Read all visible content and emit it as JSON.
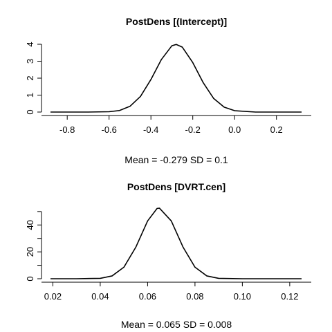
{
  "chart_data": [
    {
      "type": "line",
      "title": "PostDens [(Intercept)]",
      "xlabel": "Mean = -0.279 SD = 0.1",
      "ylabel": "",
      "xlim": [
        -0.88,
        0.32
      ],
      "ylim": [
        0,
        4
      ],
      "x_ticks": [
        -0.8,
        -0.6,
        -0.4,
        -0.2,
        0.0,
        0.2
      ],
      "x_tick_labels": [
        "-0.8",
        "-0.6",
        "-0.4",
        "-0.2",
        "0.0",
        "0.2"
      ],
      "y_ticks": [
        0,
        1,
        2,
        3,
        4
      ],
      "y_tick_labels": [
        "0",
        "1",
        "2",
        "3",
        "4"
      ],
      "series": [
        {
          "x": [
            -0.88,
            -0.8,
            -0.7,
            -0.6,
            -0.55,
            -0.5,
            -0.45,
            -0.4,
            -0.35,
            -0.3,
            -0.279,
            -0.25,
            -0.2,
            -0.15,
            -0.1,
            -0.05,
            0.0,
            0.1,
            0.2,
            0.32
          ],
          "y": [
            0.0,
            0.0,
            0.0,
            0.02,
            0.09,
            0.34,
            0.92,
            1.92,
            3.1,
            3.91,
            3.99,
            3.83,
            2.92,
            1.73,
            0.8,
            0.29,
            0.08,
            0.0,
            0.0,
            0.0
          ]
        }
      ]
    },
    {
      "type": "line",
      "title": "PostDens [DVRT.cen]",
      "xlabel": "Mean = 0.065 SD = 0.008",
      "ylabel": "",
      "xlim": [
        0.019,
        0.125
      ],
      "ylim": [
        0,
        53
      ],
      "x_ticks": [
        0.02,
        0.04,
        0.06,
        0.08,
        0.1,
        0.12
      ],
      "x_tick_labels": [
        "0.02",
        "0.04",
        "0.06",
        "0.08",
        "0.10",
        "0.12"
      ],
      "y_ticks": [
        0,
        10,
        20,
        30,
        40,
        50
      ],
      "y_tick_labels": [
        "0",
        "",
        "20",
        "",
        "40",
        ""
      ],
      "series": [
        {
          "x": [
            0.019,
            0.03,
            0.04,
            0.045,
            0.05,
            0.055,
            0.06,
            0.064,
            0.065,
            0.07,
            0.075,
            0.08,
            0.085,
            0.09,
            0.1,
            0.11,
            0.125
          ],
          "y": [
            0.0,
            0.0,
            0.3,
            2.1,
            8.6,
            23.4,
            43.0,
            52.3,
            52.5,
            43.0,
            23.4,
            8.6,
            2.1,
            0.3,
            0.0,
            0.0,
            0.0
          ]
        }
      ]
    }
  ]
}
